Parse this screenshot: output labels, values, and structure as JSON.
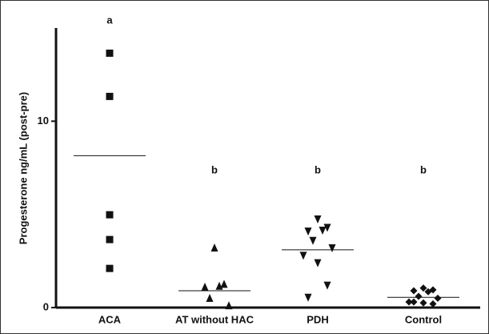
{
  "chart_data": {
    "type": "dot",
    "y_label": "Progesterone ng/mL (post-pre)",
    "categories": [
      "ACA",
      "AT without HAC",
      "PDH",
      "Control"
    ],
    "values": [
      [
        13.65,
        11.33,
        4.98,
        3.65,
        2.1
      ],
      [
        3.2,
        1.25,
        1.1,
        1.15,
        0.5,
        0.1
      ],
      [
        4.75,
        4.3,
        4.1,
        4.15,
        3.6,
        3.2,
        2.8,
        2.4,
        1.2,
        0.55
      ],
      [
        1.05,
        0.95,
        0.9,
        0.85,
        0.6,
        0.5,
        0.3,
        0.25,
        0.2,
        0.3
      ]
    ],
    "centers": [
      8.15,
      0.9,
      3.1,
      0.55
    ],
    "letters": [
      "a",
      "b",
      "b",
      "b"
    ],
    "markers": [
      "square",
      "triangle-up",
      "triangle-down",
      "diamond"
    ],
    "color": "#111111",
    "ylim": [
      0,
      15
    ],
    "yticks": [
      0,
      10
    ]
  }
}
